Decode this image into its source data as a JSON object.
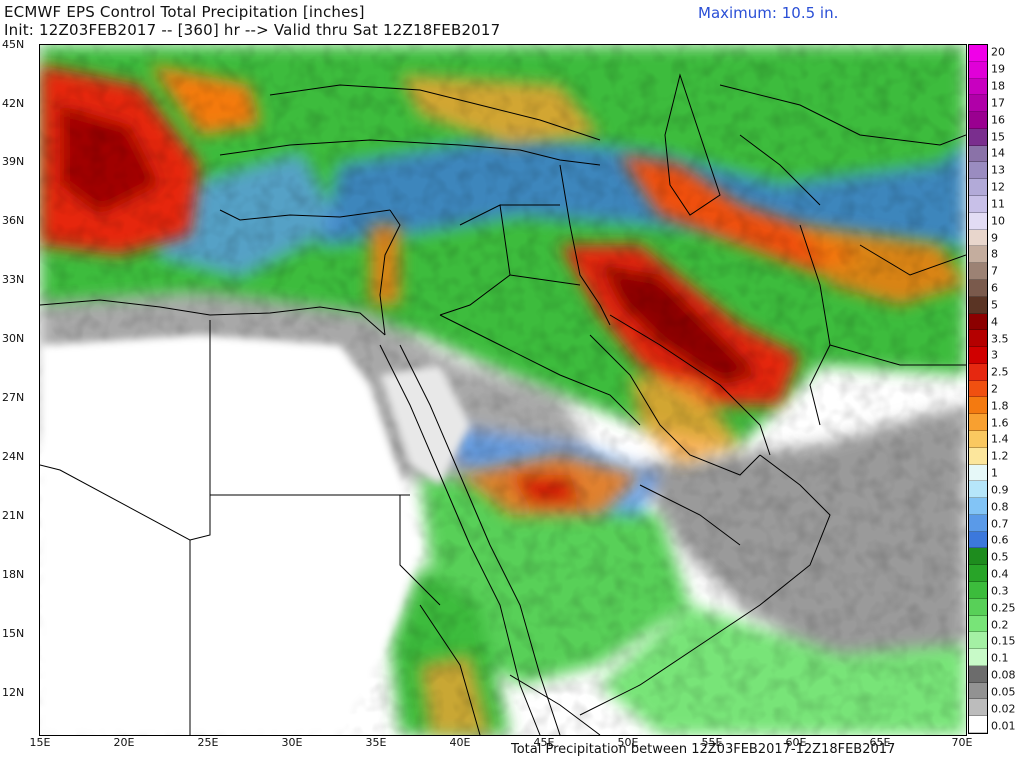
{
  "header": {
    "title_line1": "ECMWF EPS Control Total Precipitation [inches]",
    "title_line2": "Init: 12Z03FEB2017 -- [360] hr --> Valid thru Sat 12Z18FEB2017",
    "maximum": "Maximum: 10.5 in."
  },
  "footer": {
    "subtitle": "Total Precipitation between 12Z03FEB2017-12Z18FEB2017"
  },
  "map": {
    "lat_labels": [
      "45N",
      "42N",
      "39N",
      "36N",
      "33N",
      "30N",
      "27N",
      "24N",
      "21N",
      "18N",
      "15N",
      "12N"
    ],
    "lon_labels": [
      "15E",
      "20E",
      "25E",
      "30E",
      "35E",
      "40E",
      "45E",
      "50E",
      "55E",
      "60E",
      "65E",
      "70E"
    ],
    "lat_range": [
      10,
      45
    ],
    "lon_range": [
      15,
      70
    ]
  },
  "legend": {
    "levels": [
      "20",
      "19",
      "18",
      "17",
      "16",
      "15",
      "14",
      "13",
      "12",
      "11",
      "10",
      "9",
      "8",
      "7",
      "6",
      "5",
      "4",
      "3.5",
      "3",
      "2.5",
      "2",
      "1.8",
      "1.6",
      "1.4",
      "1.2",
      "1",
      "0.9",
      "0.8",
      "0.7",
      "0.6",
      "0.5",
      "0.4",
      "0.3",
      "0.25",
      "0.2",
      "0.15",
      "0.1",
      "0.08",
      "0.05",
      "0.02",
      "0.01"
    ],
    "colors": [
      "#f000e8",
      "#e000d8",
      "#c800c0",
      "#b000a8",
      "#9a0090",
      "#7a2e8e",
      "#8a72a8",
      "#9a8cc0",
      "#b2aad8",
      "#c8c0e8",
      "#e2dcf4",
      "#e8d6cc",
      "#c4ad9e",
      "#9c8274",
      "#7a5a4c",
      "#5a3424",
      "#8c0000",
      "#b40000",
      "#d00000",
      "#e62810",
      "#f05010",
      "#f47a10",
      "#f8a030",
      "#fac860",
      "#fce69c",
      "#e6f8f8",
      "#b6e6fa",
      "#82c4f6",
      "#5a9ae8",
      "#3c78dc",
      "#1e8c1e",
      "#28a428",
      "#3cbc3c",
      "#58d058",
      "#78e478",
      "#a4f0a4",
      "#c8fac8",
      "#6c6c6c",
      "#929292",
      "#bcbcbc",
      "#ffffff"
    ]
  }
}
